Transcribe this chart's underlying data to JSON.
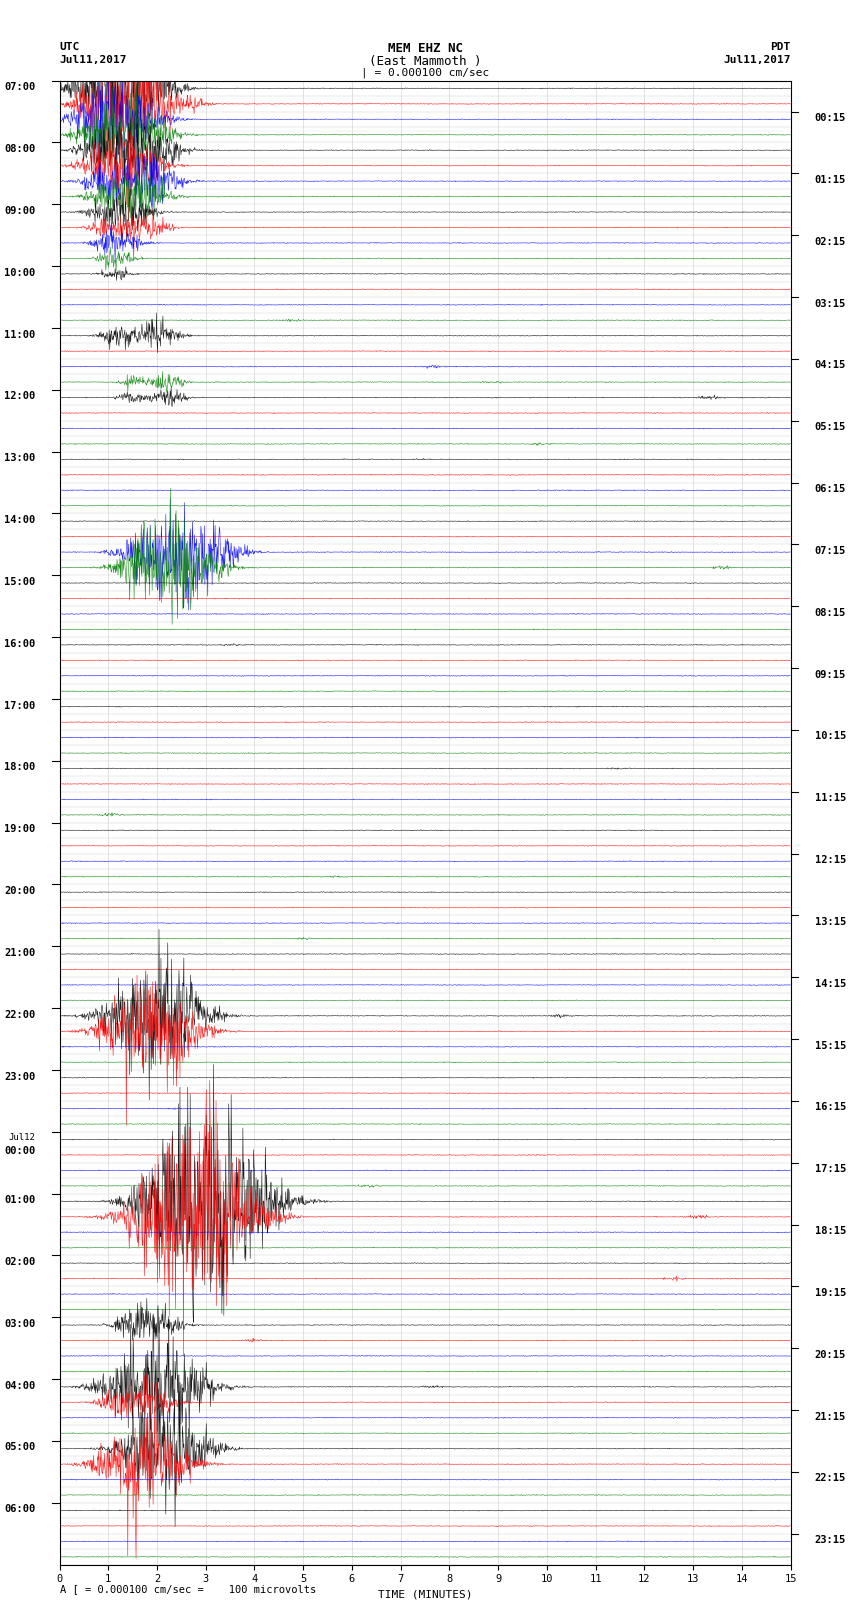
{
  "title_line1": "MEM EHZ NC",
  "title_line2": "(East Mammoth )",
  "title_line3": "| = 0.000100 cm/sec",
  "label_utc": "UTC",
  "label_pdt": "PDT",
  "date_left": "Jul11,2017",
  "date_right": "Jul11,2017",
  "footer": "A [ = 0.000100 cm/sec =    100 microvolts",
  "xlabel": "TIME (MINUTES)",
  "left_times": [
    "07:00",
    "08:00",
    "09:00",
    "10:00",
    "11:00",
    "12:00",
    "13:00",
    "14:00",
    "15:00",
    "16:00",
    "17:00",
    "18:00",
    "19:00",
    "20:00",
    "21:00",
    "22:00",
    "23:00",
    "Jul12\n00:00",
    "01:00",
    "02:00",
    "03:00",
    "04:00",
    "05:00",
    "06:00"
  ],
  "right_times": [
    "00:15",
    "01:15",
    "02:15",
    "03:15",
    "04:15",
    "05:15",
    "06:15",
    "07:15",
    "08:15",
    "09:15",
    "10:15",
    "11:15",
    "12:15",
    "13:15",
    "14:15",
    "15:15",
    "16:15",
    "17:15",
    "18:15",
    "19:15",
    "20:15",
    "21:15",
    "22:15",
    "23:15"
  ],
  "num_rows": 96,
  "row_colors": [
    "black",
    "red",
    "blue",
    "green"
  ],
  "bg_color": "white",
  "grid_color": "#cccccc",
  "axis_color": "black",
  "xlim": [
    0,
    15
  ],
  "xticks": [
    0,
    1,
    2,
    3,
    4,
    5,
    6,
    7,
    8,
    9,
    10,
    11,
    12,
    13,
    14,
    15
  ],
  "title_fontsize": 9,
  "label_fontsize": 8,
  "tick_fontsize": 7.5
}
